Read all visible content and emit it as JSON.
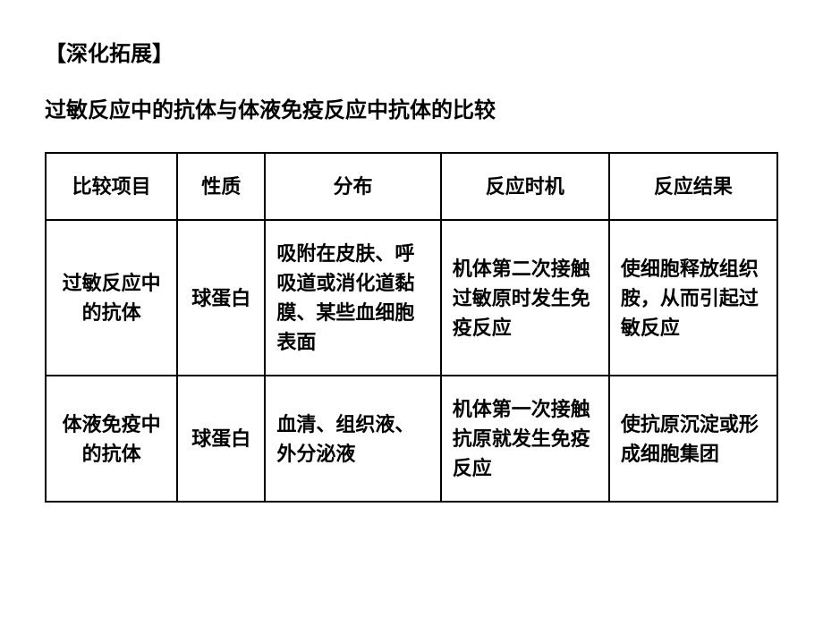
{
  "section_heading": "【深化拓展】",
  "title": "过敏反应中的抗体与体液免疫反应中抗体的比较",
  "table": {
    "type": "table",
    "background_color": "#ffffff",
    "border_color": "#000000",
    "border_width": 2,
    "text_color": "#000000",
    "font_size": 22,
    "font_weight": "bold",
    "cell_padding": 20,
    "columns": [
      {
        "label": "比较项目",
        "width_pct": 18,
        "align": "center"
      },
      {
        "label": "性质",
        "width_pct": 12,
        "align": "center"
      },
      {
        "label": "分布",
        "width_pct": 24,
        "align": "left"
      },
      {
        "label": "反应时机",
        "width_pct": 23,
        "align": "left"
      },
      {
        "label": "反应结果",
        "width_pct": 23,
        "align": "left"
      }
    ],
    "rows": [
      {
        "cells": [
          "过敏反应中的抗体",
          "球蛋白",
          "吸附在皮肤、呼吸道或消化道黏膜、某些血细胞表面",
          "机体第二次接触过敏原时发生免疫反应",
          "使细胞释放组织胺，从而引起过敏反应"
        ]
      },
      {
        "cells": [
          "体液免疫中的抗体",
          "球蛋白",
          "血清、组织液、外分泌液",
          "机体第一次接触抗原就发生免疫反应",
          "使抗原沉淀或形成细胞集团"
        ]
      }
    ]
  }
}
